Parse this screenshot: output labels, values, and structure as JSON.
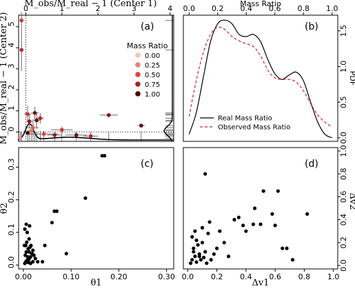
{
  "chart_data": [
    {
      "panel": "(a)",
      "type": "scatter",
      "xlabel_top": "M_obs/M_real − 1 (Center 1)",
      "ylabel": "M_obs/M_real − 1 (Center 2)",
      "x_ticks_top": [
        "0",
        "1",
        "2",
        "3",
        "4"
      ],
      "y_ticks": [
        "0",
        "1",
        "2",
        "3",
        "4",
        "5"
      ],
      "xlim": [
        -0.2,
        4.1
      ],
      "ylim": [
        -0.45,
        5.55
      ],
      "legend_title": "Mass Ratio",
      "legend": [
        {
          "label": "0.00",
          "color": "#f4c4b0"
        },
        {
          "label": "0.25",
          "color": "#e8846c"
        },
        {
          "label": "0.50",
          "color": "#d94a3c"
        },
        {
          "label": "0.75",
          "color": "#b01e1e"
        },
        {
          "label": "1.00",
          "color": "#4a0808"
        }
      ],
      "points": [
        {
          "x": -0.12,
          "y": 5.3,
          "xerr": 0.05,
          "yerr": 0.4,
          "q": 0.6
        },
        {
          "x": -0.12,
          "y": 3.9,
          "xerr": 0.05,
          "yerr": 1.0,
          "q": 0.7
        },
        {
          "x": 0.05,
          "y": 0.85,
          "xerr": 0.1,
          "yerr": 0.4,
          "q": 0.6
        },
        {
          "x": 0.1,
          "y": 0.5,
          "xerr": 0.08,
          "yerr": 0.35,
          "q": 0.8
        },
        {
          "x": 0.25,
          "y": 0.9,
          "xerr": 0.1,
          "yerr": 0.3,
          "q": 0.9
        },
        {
          "x": 0.2,
          "y": 0.2,
          "xerr": 0.15,
          "yerr": 0.4,
          "q": 0.4
        },
        {
          "x": 0.3,
          "y": 0.55,
          "xerr": 0.08,
          "yerr": 0.4,
          "q": 0.95
        },
        {
          "x": 0.4,
          "y": 0.65,
          "xerr": 0.1,
          "yerr": 0.25,
          "q": 0.7
        },
        {
          "x": 0.5,
          "y": -0.1,
          "xerr": 0.4,
          "yerr": 0.15,
          "q": 0.5
        },
        {
          "x": 0.8,
          "y": -0.15,
          "xerr": 0.2,
          "yerr": 0.1,
          "q": 0.8
        },
        {
          "x": 1.0,
          "y": 0.1,
          "xerr": 0.3,
          "yerr": 0.15,
          "q": 0.6
        },
        {
          "x": 1.4,
          "y": -0.15,
          "xerr": 0.3,
          "yerr": 0.1,
          "q": 0.9
        },
        {
          "x": 1.8,
          "y": -0.2,
          "xerr": 0.2,
          "yerr": 0.1,
          "q": 0.7
        },
        {
          "x": 2.3,
          "y": 0.8,
          "xerr": 0.25,
          "yerr": 0.1,
          "q": 0.85
        },
        {
          "x": 3.2,
          "y": 0.3,
          "xerr": 0.1,
          "yerr": 0.05,
          "q": 0.95
        },
        {
          "x": 0.15,
          "y": 0.05,
          "xerr": 0.1,
          "yerr": 0.1,
          "q": 0.3
        },
        {
          "x": 0.05,
          "y": -0.05,
          "xerr": 0.05,
          "yerr": 0.1,
          "q": 1.0
        },
        {
          "x": -0.15,
          "y": -0.3,
          "xerr": 0.05,
          "yerr": 0.05,
          "q": 0.2
        }
      ]
    },
    {
      "panel": "(b)",
      "type": "line",
      "xlabel_top": "Mass Ratio",
      "ylabel_right": "PDF",
      "x_ticks_top": [
        "0.0",
        "0.2",
        "0.4",
        "0.6",
        "0.8",
        "1.0"
      ],
      "y_ticks": [
        "0.0",
        "0.5",
        "1.0",
        "1.5"
      ],
      "xlim": [
        -0.04,
        1.04
      ],
      "ylim": [
        -0.05,
        1.72
      ],
      "series": [
        {
          "name": "Real Mass Ratio",
          "color": "#000000",
          "dash": "solid",
          "x": [
            0.0,
            0.05,
            0.1,
            0.15,
            0.2,
            0.25,
            0.3,
            0.35,
            0.4,
            0.45,
            0.5,
            0.55,
            0.6,
            0.65,
            0.7,
            0.75,
            0.8,
            0.85,
            0.9,
            0.95,
            1.0
          ],
          "y": [
            0.05,
            0.35,
            0.85,
            1.35,
            1.6,
            1.65,
            1.6,
            1.45,
            1.42,
            1.45,
            1.35,
            1.1,
            0.9,
            0.82,
            0.88,
            0.92,
            0.8,
            0.5,
            0.22,
            0.05,
            0.0
          ]
        },
        {
          "name": "Observed Mass Ratio",
          "color": "#d62020",
          "dash": "dashed",
          "x": [
            0.0,
            0.05,
            0.1,
            0.15,
            0.2,
            0.25,
            0.3,
            0.35,
            0.4,
            0.45,
            0.5,
            0.55,
            0.6,
            0.65,
            0.7,
            0.75,
            0.8,
            0.85,
            0.9,
            0.95,
            1.0
          ],
          "y": [
            0.3,
            0.8,
            1.2,
            1.45,
            1.55,
            1.52,
            1.42,
            1.36,
            1.32,
            1.28,
            1.15,
            0.95,
            0.84,
            0.82,
            0.82,
            0.78,
            0.66,
            0.48,
            0.32,
            0.22,
            0.15
          ]
        }
      ]
    },
    {
      "panel": "(c)",
      "type": "scatter",
      "xlabel": "θ1",
      "ylabel": "θ2",
      "x_ticks": [
        "0.00",
        "0.10",
        "0.20",
        "0.30"
      ],
      "y_ticks": [
        "0.0",
        "0.1",
        "0.2",
        "0.3"
      ],
      "xlim": [
        -0.01,
        0.315
      ],
      "ylim": [
        -0.012,
        0.36
      ],
      "x": [
        0.003,
        0.005,
        0.008,
        0.01,
        0.012,
        0.015,
        0.004,
        0.006,
        0.01,
        0.014,
        0.002,
        0.018,
        0.02,
        0.007,
        0.012,
        0.016,
        0.009,
        0.011,
        0.003,
        0.013,
        0.02,
        0.025,
        0.03,
        0.005,
        0.008,
        0.022,
        0.015,
        0.04,
        0.045,
        0.06,
        0.065,
        0.07,
        0.09,
        0.13,
        0.165,
        0.17,
        0.006,
        0.012
      ],
      "y": [
        0.005,
        0.01,
        0.015,
        0.008,
        0.02,
        0.025,
        0.03,
        0.04,
        0.05,
        0.055,
        0.06,
        0.035,
        0.045,
        0.07,
        0.08,
        0.06,
        0.025,
        0.015,
        0.11,
        0.12,
        0.01,
        0.02,
        0.01,
        0.06,
        0.1,
        0.03,
        0.005,
        0.01,
        0.06,
        0.13,
        0.165,
        0.165,
        0.035,
        0.205,
        0.335,
        0.335,
        0.125,
        0.04
      ]
    },
    {
      "panel": "(d)",
      "type": "scatter",
      "xlabel": "Δv1",
      "ylabel_right": "Δv2",
      "x_ticks": [
        "0.0",
        "0.2",
        "0.4",
        "0.6",
        "0.8",
        "1.0"
      ],
      "y_ticks": [
        "0.0",
        "0.2",
        "0.4",
        "0.6",
        "0.8",
        "1.0"
      ],
      "xlim": [
        -0.03,
        1.03
      ],
      "ylim": [
        -0.03,
        1.03
      ],
      "x": [
        0.02,
        0.03,
        0.05,
        0.06,
        0.04,
        0.08,
        0.1,
        0.12,
        0.03,
        0.05,
        0.07,
        0.09,
        0.11,
        0.14,
        0.15,
        0.06,
        0.04,
        0.13,
        0.18,
        0.2,
        0.16,
        0.22,
        0.1,
        0.25,
        0.28,
        0.32,
        0.35,
        0.38,
        0.4,
        0.45,
        0.46,
        0.5,
        0.52,
        0.58,
        0.6,
        0.62,
        0.65,
        0.68,
        0.72,
        0.82,
        0.12,
        0.08
      ],
      "y": [
        0.02,
        0.05,
        0.08,
        0.03,
        0.15,
        0.1,
        0.2,
        0.12,
        0.25,
        0.3,
        0.18,
        0.05,
        0.07,
        0.28,
        0.38,
        0.22,
        0.12,
        0.02,
        0.1,
        0.15,
        0.05,
        0.3,
        0.33,
        0.2,
        0.08,
        0.4,
        0.42,
        0.35,
        0.3,
        0.36,
        0.5,
        0.36,
        0.65,
        0.45,
        0.35,
        0.65,
        0.15,
        0.15,
        0.05,
        0.45,
        0.8,
        0.08
      ]
    }
  ]
}
